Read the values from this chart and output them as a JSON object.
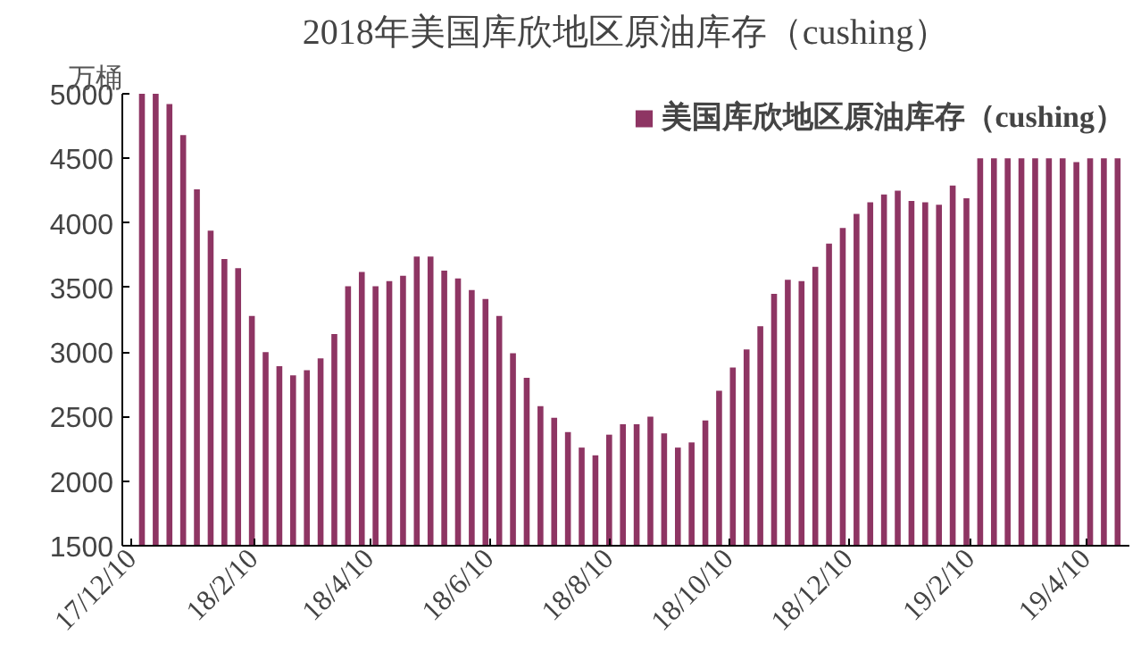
{
  "chart_data": {
    "type": "bar",
    "title": "2018年美国库欣地区原油库存（cushing）",
    "ylabel": "万桶",
    "x": [
      "2017-12-15",
      "2017-12-22",
      "2017-12-29",
      "2018-01-05",
      "2018-01-12",
      "2018-01-19",
      "2018-01-26",
      "2018-02-02",
      "2018-02-09",
      "2018-02-16",
      "2018-02-23",
      "2018-03-02",
      "2018-03-09",
      "2018-03-16",
      "2018-03-23",
      "2018-03-30",
      "2018-04-06",
      "2018-04-13",
      "2018-04-20",
      "2018-04-27",
      "2018-05-04",
      "2018-05-11",
      "2018-05-18",
      "2018-05-25",
      "2018-06-01",
      "2018-06-08",
      "2018-06-15",
      "2018-06-22",
      "2018-06-29",
      "2018-07-06",
      "2018-07-13",
      "2018-07-20",
      "2018-07-27",
      "2018-08-03",
      "2018-08-10",
      "2018-08-17",
      "2018-08-24",
      "2018-08-31",
      "2018-09-07",
      "2018-09-14",
      "2018-09-21",
      "2018-09-28",
      "2018-10-05",
      "2018-10-12",
      "2018-10-19",
      "2018-10-26",
      "2018-11-02",
      "2018-11-09",
      "2018-11-16",
      "2018-11-23",
      "2018-11-30",
      "2018-12-07",
      "2018-12-14",
      "2018-12-21",
      "2018-12-28",
      "2019-01-04",
      "2019-01-11",
      "2019-01-18",
      "2019-01-25",
      "2019-02-01",
      "2019-02-08",
      "2019-02-15",
      "2019-02-22",
      "2019-03-01",
      "2019-03-08",
      "2019-03-15",
      "2019-03-22",
      "2019-03-29",
      "2019-04-05",
      "2019-04-12",
      "2019-04-19",
      "2019-04-26"
    ],
    "series": [
      {
        "name": "美国库欣地区原油库存（cushing）",
        "color": "#8e3563",
        "values": [
          5000,
          5000,
          4920,
          4680,
          4260,
          3940,
          3720,
          3650,
          3280,
          3000,
          2890,
          2820,
          2860,
          2950,
          3140,
          3510,
          3620,
          3510,
          3550,
          3590,
          3740,
          3740,
          3630,
          3570,
          3480,
          3410,
          3280,
          2990,
          2800,
          2580,
          2490,
          2380,
          2260,
          2200,
          2360,
          2440,
          2440,
          2500,
          2370,
          2260,
          2300,
          2470,
          2700,
          2880,
          3020,
          3200,
          3450,
          3560,
          3550,
          3660,
          3840,
          3960,
          4070,
          4160,
          4220,
          4250,
          4170,
          4160,
          4140,
          4290,
          4190,
          4500,
          4500,
          4500,
          4500,
          4500,
          4500,
          4500,
          4470,
          4500,
          4500,
          4500
        ]
      }
    ],
    "xlim": [
      "2017-12-05",
      "2019-05-02"
    ],
    "xticks": [
      {
        "value": "2017-12-10",
        "label": "17/12/10"
      },
      {
        "value": "2018-02-10",
        "label": "18/2/10"
      },
      {
        "value": "2018-04-10",
        "label": "18/4/10"
      },
      {
        "value": "2018-06-10",
        "label": "18/6/10"
      },
      {
        "value": "2018-08-10",
        "label": "18/8/10"
      },
      {
        "value": "2018-10-10",
        "label": "18/10/10"
      },
      {
        "value": "2018-12-10",
        "label": "18/12/10"
      },
      {
        "value": "2019-02-10",
        "label": "19/2/10"
      },
      {
        "value": "2019-04-10",
        "label": "19/4/10"
      }
    ],
    "ylim": [
      1500,
      5000
    ],
    "yticks": [
      1500,
      2000,
      2500,
      3000,
      3500,
      4000,
      4500,
      5000
    ],
    "grid": false,
    "legend": "top right"
  }
}
